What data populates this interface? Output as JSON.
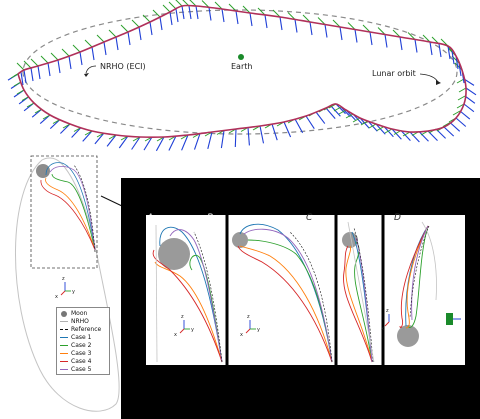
{
  "labels": {
    "nrho_eci": "NRHO (ECI)",
    "earth": "Earth",
    "lunar_orbit": "Lunar orbit"
  },
  "panels": [
    "A",
    "B",
    "C",
    "D"
  ],
  "axes": {
    "x": "x",
    "y": "y",
    "z": "z"
  },
  "legend": [
    {
      "label": "Moon",
      "color": "#777777",
      "kind": "dot"
    },
    {
      "label": "NRHO",
      "color": "#b0b0b0",
      "kind": "line"
    },
    {
      "label": "Reference",
      "color": "#111111",
      "kind": "dash"
    },
    {
      "label": "Case 1",
      "color": "#1f77b4",
      "kind": "line"
    },
    {
      "label": "Case 2",
      "color": "#2ca02c",
      "kind": "line"
    },
    {
      "label": "Case 3",
      "color": "#ff7f0e",
      "kind": "line"
    },
    {
      "label": "Case 4",
      "color": "#d62728",
      "kind": "line"
    },
    {
      "label": "Case 5",
      "color": "#9467bd",
      "kind": "line"
    }
  ],
  "colors": {
    "trajectory": "#b0305a",
    "body_axis_blue": "#1f3fd6",
    "body_axis_green": "#2ca02c",
    "earth": "#1a8a2a",
    "moon": "#9a9a9a",
    "zoom_background": "#000000"
  }
}
